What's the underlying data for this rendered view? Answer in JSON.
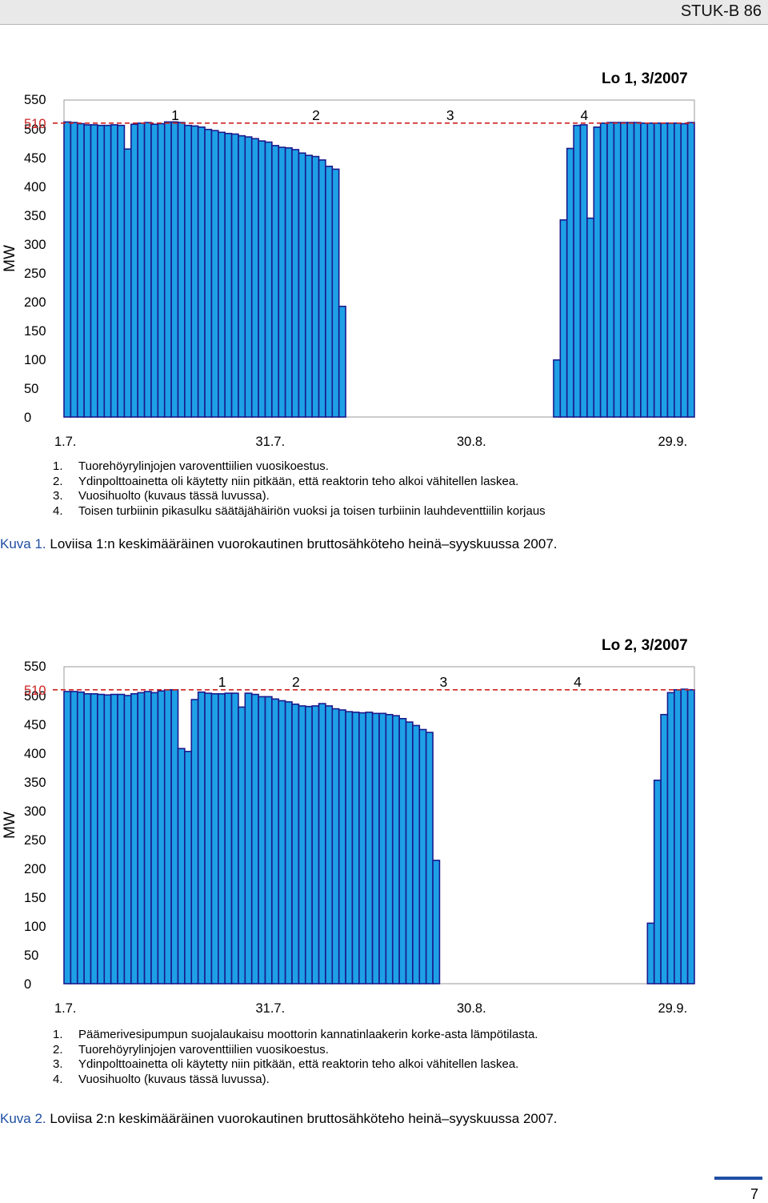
{
  "header": {
    "text": "STUK-B 86"
  },
  "charts": [
    {
      "title": "Lo 1, 3/2007",
      "notes": [
        {
          "num": "1.",
          "text": "Tuorehöyrylinjojen varoventtiilien vuosikoestus."
        },
        {
          "num": "2.",
          "text": "Ydinpolttoainetta oli käytetty niin pitkään, että reaktorin teho alkoi vähitellen laskea."
        },
        {
          "num": "3.",
          "text": "Vuosihuolto (kuvaus tässä luvussa)."
        },
        {
          "num": "4.",
          "text": "Toisen turbiinin pikasulku säätäjähäiriön vuoksi ja toisen turbiinin lauhdeventtiilin korjaus"
        }
      ],
      "caption": {
        "label": "Kuva 1.",
        "text": " Loviisa 1:n keskimääräinen vuorokautinen bruttosähköteho heinä–syyskuussa 2007."
      }
    },
    {
      "title": "Lo 2, 3/2007",
      "notes": [
        {
          "num": "1.",
          "text": "Päämerivesipumpun suojalaukaisu moottorin kannatinlaakerin korke-asta lämpötilasta."
        },
        {
          "num": "2.",
          "text": "Tuorehöyrylinjojen varoventtiilien vuosikoestus."
        },
        {
          "num": "3.",
          "text": "Ydinpolttoainetta oli käytetty niin pitkään, että reaktorin teho alkoi vähitellen laskea."
        },
        {
          "num": "4.",
          "text": "Vuosihuolto (kuvaus tässä luvussa)."
        }
      ],
      "caption": {
        "label": "Kuva 2.",
        "text": " Loviisa 2:n keskimääräinen vuorokautinen bruttosähköteho heinä–syyskuussa 2007."
      }
    }
  ],
  "chart_data": [
    {
      "type": "bar",
      "title": "Lo 1, 3/2007",
      "ylabel": "MW",
      "ylim": [
        0,
        550
      ],
      "yticks": [
        "0",
        "50",
        "100",
        "150",
        "200",
        "250",
        "300",
        "350",
        "400",
        "450",
        "500",
        "510",
        "550"
      ],
      "reference_line": {
        "value": 510,
        "label": "510",
        "color": "#cc2222",
        "style": "dashed"
      },
      "xticks": [
        {
          "day": 1,
          "label": "1.7."
        },
        {
          "day": 31,
          "label": "31.7."
        },
        {
          "day": 61,
          "label": "30.8."
        },
        {
          "day": 91,
          "label": "29.9."
        }
      ],
      "annotations": [
        {
          "text": "1",
          "day": 17
        },
        {
          "text": "2",
          "day": 38
        },
        {
          "text": "3",
          "day": 58
        },
        {
          "text": "4",
          "day": 78
        }
      ],
      "bar_color": "#1ea0e6",
      "bar_edge_color": "#1a1a8c",
      "values": [
        512,
        511,
        509,
        507,
        507,
        506,
        506,
        507,
        506,
        465,
        508,
        510,
        511,
        508,
        509,
        512,
        512,
        511,
        506,
        505,
        503,
        499,
        497,
        494,
        492,
        491,
        488,
        486,
        483,
        479,
        477,
        471,
        468,
        467,
        464,
        458,
        454,
        452,
        446,
        435,
        430,
        192,
        0,
        0,
        0,
        0,
        0,
        0,
        0,
        0,
        0,
        0,
        0,
        0,
        0,
        0,
        0,
        0,
        0,
        0,
        0,
        0,
        0,
        0,
        0,
        0,
        0,
        0,
        0,
        0,
        0,
        0,
        0,
        99,
        342,
        466,
        506,
        507,
        345,
        503,
        510,
        511,
        511,
        511,
        511,
        511,
        510,
        510,
        510,
        510,
        510,
        510,
        509,
        511
      ]
    },
    {
      "type": "bar",
      "title": "Lo 2, 3/2007",
      "ylabel": "MW",
      "ylim": [
        0,
        550
      ],
      "yticks": [
        "0",
        "50",
        "100",
        "150",
        "200",
        "250",
        "300",
        "350",
        "400",
        "450",
        "500",
        "510",
        "550"
      ],
      "reference_line": {
        "value": 510,
        "label": "510",
        "color": "#cc2222",
        "style": "dashed"
      },
      "xticks": [
        {
          "day": 1,
          "label": "1.7."
        },
        {
          "day": 31,
          "label": "31.7."
        },
        {
          "day": 61,
          "label": "30.8."
        },
        {
          "day": 91,
          "label": "29.9."
        }
      ],
      "annotations": [
        {
          "text": "1",
          "day": 24
        },
        {
          "text": "2",
          "day": 35
        },
        {
          "text": "3",
          "day": 57
        },
        {
          "text": "4",
          "day": 77
        }
      ],
      "bar_color": "#1ea0e6",
      "bar_edge_color": "#1a1a8c",
      "values": [
        507,
        507,
        506,
        503,
        503,
        502,
        501,
        502,
        502,
        500,
        503,
        505,
        507,
        505,
        508,
        510,
        510,
        408,
        403,
        493,
        506,
        504,
        503,
        503,
        504,
        504,
        480,
        504,
        502,
        498,
        498,
        494,
        491,
        489,
        485,
        482,
        481,
        482,
        486,
        482,
        477,
        475,
        472,
        471,
        470,
        471,
        469,
        469,
        467,
        465,
        460,
        454,
        448,
        441,
        436,
        214,
        0,
        0,
        0,
        0,
        0,
        0,
        0,
        0,
        0,
        0,
        0,
        0,
        0,
        0,
        0,
        0,
        0,
        0,
        0,
        0,
        0,
        0,
        0,
        0,
        0,
        0,
        0,
        0,
        0,
        0,
        0,
        105,
        353,
        467,
        505,
        510,
        511,
        510
      ]
    }
  ],
  "footer": {
    "page_number": "7"
  }
}
